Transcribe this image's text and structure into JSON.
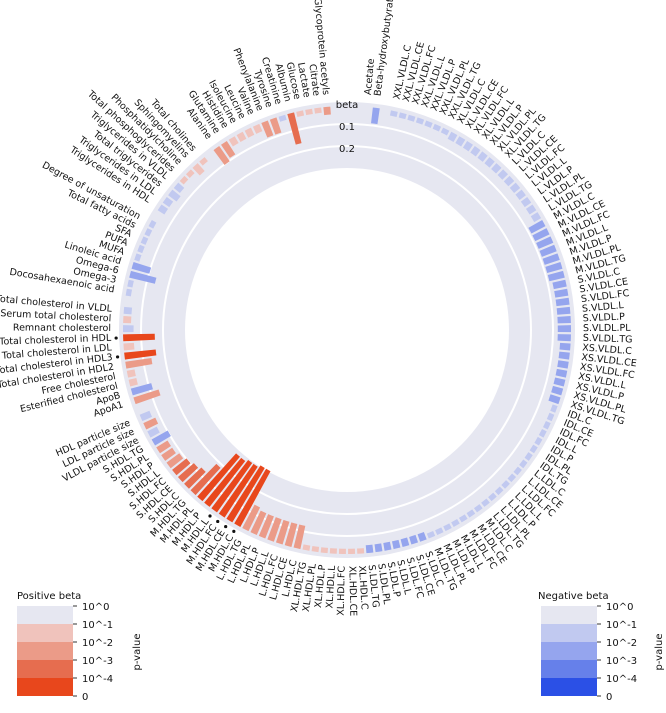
{
  "chart_data": {
    "type": "circular-bar",
    "ring_labels": [
      "beta",
      "0.1",
      "0.2"
    ],
    "colors": {
      "ring_bg": "#e6e7f1",
      "positive": [
        "#e6e7f1",
        "#f0c3bc",
        "#eb9b88",
        "#e66d4f",
        "#e8471c"
      ],
      "negative": [
        "#e6e7f1",
        "#c1c9f0",
        "#95a5ee",
        "#6680ea",
        "#2b50e6"
      ]
    },
    "features": [
      {
        "label": "Acetate",
        "beta": 0,
        "sign": "pos",
        "level": 0
      },
      {
        "label": "Beta-hydroxybutyrate",
        "beta": 0.06,
        "sign": "neg",
        "level": 2
      },
      {
        "label": "",
        "beta": 0,
        "sign": "pos",
        "level": 0
      },
      {
        "label": "XXL.VLDL.C",
        "beta": 0.02,
        "sign": "neg",
        "level": 1
      },
      {
        "label": "XXL.VLDL.CE",
        "beta": 0.02,
        "sign": "neg",
        "level": 1
      },
      {
        "label": "XXL.VLDL.FC",
        "beta": 0.02,
        "sign": "neg",
        "level": 1
      },
      {
        "label": "XXL.VLDL.L",
        "beta": 0.02,
        "sign": "neg",
        "level": 1
      },
      {
        "label": "XXL.VLDL.P",
        "beta": 0.02,
        "sign": "neg",
        "level": 1
      },
      {
        "label": "XXL.VLDL.PL",
        "beta": 0.02,
        "sign": "neg",
        "level": 1
      },
      {
        "label": "XXL.VLDL.TG",
        "beta": 0.02,
        "sign": "neg",
        "level": 1
      },
      {
        "label": "XL.VLDL.C",
        "beta": 0.03,
        "sign": "neg",
        "level": 1
      },
      {
        "label": "XL.VLDL.CE",
        "beta": 0.03,
        "sign": "neg",
        "level": 1
      },
      {
        "label": "XL.VLDL.FC",
        "beta": 0.03,
        "sign": "neg",
        "level": 1
      },
      {
        "label": "XL.VLDL.L",
        "beta": 0.03,
        "sign": "neg",
        "level": 1
      },
      {
        "label": "XL.VLDL.P",
        "beta": 0.03,
        "sign": "neg",
        "level": 1
      },
      {
        "label": "XL.VLDL.PL",
        "beta": 0.03,
        "sign": "neg",
        "level": 1
      },
      {
        "label": "XL.VLDL.TG",
        "beta": 0.03,
        "sign": "neg",
        "level": 1
      },
      {
        "label": "L.VLDL.C",
        "beta": 0.03,
        "sign": "neg",
        "level": 1
      },
      {
        "label": "L.VLDL.CE",
        "beta": 0.03,
        "sign": "neg",
        "level": 1
      },
      {
        "label": "L.VLDL.FC",
        "beta": 0.03,
        "sign": "neg",
        "level": 1
      },
      {
        "label": "L.VLDL.L",
        "beta": 0.03,
        "sign": "neg",
        "level": 1
      },
      {
        "label": "L.VLDL.P",
        "beta": 0.03,
        "sign": "neg",
        "level": 1
      },
      {
        "label": "L.VLDL.PL",
        "beta": 0.03,
        "sign": "neg",
        "level": 1
      },
      {
        "label": "L.VLDL.TG",
        "beta": 0.03,
        "sign": "neg",
        "level": 1
      },
      {
        "label": "M.VLDL.C",
        "beta": 0.06,
        "sign": "neg",
        "level": 2
      },
      {
        "label": "M.VLDL.CE",
        "beta": 0.06,
        "sign": "neg",
        "level": 2
      },
      {
        "label": "M.VLDL.FC",
        "beta": 0.06,
        "sign": "neg",
        "level": 2
      },
      {
        "label": "M.VLDL.L",
        "beta": 0.06,
        "sign": "neg",
        "level": 2
      },
      {
        "label": "M.VLDL.P",
        "beta": 0.06,
        "sign": "neg",
        "level": 2
      },
      {
        "label": "M.VLDL.PL",
        "beta": 0.06,
        "sign": "neg",
        "level": 2
      },
      {
        "label": "M.VLDL.TG",
        "beta": 0.06,
        "sign": "neg",
        "level": 2
      },
      {
        "label": "S.VLDL.C",
        "beta": 0.05,
        "sign": "neg",
        "level": 2
      },
      {
        "label": "S.VLDL.CE",
        "beta": 0.05,
        "sign": "neg",
        "level": 2
      },
      {
        "label": "S.VLDL.FC",
        "beta": 0.05,
        "sign": "neg",
        "level": 2
      },
      {
        "label": "S.VLDL.L",
        "beta": 0.05,
        "sign": "neg",
        "level": 2
      },
      {
        "label": "S.VLDL.P",
        "beta": 0.05,
        "sign": "neg",
        "level": 2
      },
      {
        "label": "S.VLDL.PL",
        "beta": 0.05,
        "sign": "neg",
        "level": 2
      },
      {
        "label": "S.VLDL.TG",
        "beta": 0.05,
        "sign": "neg",
        "level": 2
      },
      {
        "label": "XS.VLDL.C",
        "beta": 0.04,
        "sign": "neg",
        "level": 2
      },
      {
        "label": "XS.VLDL.CE",
        "beta": 0.04,
        "sign": "neg",
        "level": 2
      },
      {
        "label": "XS.VLDL.FC",
        "beta": 0.04,
        "sign": "neg",
        "level": 2
      },
      {
        "label": "XS.VLDL.L",
        "beta": 0.04,
        "sign": "neg",
        "level": 2
      },
      {
        "label": "XS.VLDL.P",
        "beta": 0.04,
        "sign": "neg",
        "level": 2
      },
      {
        "label": "XS.VLDL.PL",
        "beta": 0.04,
        "sign": "neg",
        "level": 2
      },
      {
        "label": "XS.VLDL.TG",
        "beta": 0.04,
        "sign": "neg",
        "level": 2
      },
      {
        "label": "IDL.C",
        "beta": 0.02,
        "sign": "neg",
        "level": 1
      },
      {
        "label": "IDL.CE",
        "beta": 0.02,
        "sign": "neg",
        "level": 1
      },
      {
        "label": "IDL.FC",
        "beta": 0.02,
        "sign": "neg",
        "level": 1
      },
      {
        "label": "IDL.L",
        "beta": 0.02,
        "sign": "neg",
        "level": 1
      },
      {
        "label": "IDL.P",
        "beta": 0.02,
        "sign": "neg",
        "level": 1
      },
      {
        "label": "IDL.PL",
        "beta": 0.02,
        "sign": "neg",
        "level": 1
      },
      {
        "label": "IDL.TG",
        "beta": 0.02,
        "sign": "neg",
        "level": 1
      },
      {
        "label": "L.LDL.C",
        "beta": 0.02,
        "sign": "neg",
        "level": 1
      },
      {
        "label": "L.LDL.CE",
        "beta": 0.02,
        "sign": "neg",
        "level": 1
      },
      {
        "label": "L.LDL.FC",
        "beta": 0.02,
        "sign": "neg",
        "level": 1
      },
      {
        "label": "L.LDL.L",
        "beta": 0.02,
        "sign": "neg",
        "level": 1
      },
      {
        "label": "L.LDL.P",
        "beta": 0.02,
        "sign": "neg",
        "level": 1
      },
      {
        "label": "L.LDL.PL",
        "beta": 0.02,
        "sign": "neg",
        "level": 1
      },
      {
        "label": "L.LDL.TG",
        "beta": 0.02,
        "sign": "neg",
        "level": 1
      },
      {
        "label": "M.LDL.C",
        "beta": 0.02,
        "sign": "neg",
        "level": 1
      },
      {
        "label": "M.LDL.CE",
        "beta": 0.02,
        "sign": "neg",
        "level": 1
      },
      {
        "label": "M.LDL.FC",
        "beta": 0.02,
        "sign": "neg",
        "level": 1
      },
      {
        "label": "M.LDL.L",
        "beta": 0.02,
        "sign": "neg",
        "level": 1
      },
      {
        "label": "M.LDL.P",
        "beta": 0.02,
        "sign": "neg",
        "level": 1
      },
      {
        "label": "M.LDL.PL",
        "beta": 0.02,
        "sign": "neg",
        "level": 1
      },
      {
        "label": "M.LDL.TG",
        "beta": 0.02,
        "sign": "neg",
        "level": 1
      },
      {
        "label": "S.LDL.C",
        "beta": 0.03,
        "sign": "neg",
        "level": 2
      },
      {
        "label": "S.LDL.CE",
        "beta": 0.03,
        "sign": "neg",
        "level": 2
      },
      {
        "label": "S.LDL.FC",
        "beta": 0.03,
        "sign": "neg",
        "level": 2
      },
      {
        "label": "S.LDL.L",
        "beta": 0.03,
        "sign": "neg",
        "level": 2
      },
      {
        "label": "S.LDL.P",
        "beta": 0.03,
        "sign": "neg",
        "level": 2
      },
      {
        "label": "S.LDL.PL",
        "beta": 0.03,
        "sign": "neg",
        "level": 2
      },
      {
        "label": "S.LDL.TG",
        "beta": 0.03,
        "sign": "neg",
        "level": 2
      },
      {
        "label": "XL.HDL.C",
        "beta": 0.02,
        "sign": "pos",
        "level": 1
      },
      {
        "label": "XL.HDL.CE",
        "beta": 0.02,
        "sign": "pos",
        "level": 1
      },
      {
        "label": "XL.HDL.FC",
        "beta": 0.02,
        "sign": "pos",
        "level": 1
      },
      {
        "label": "XL.HDL.L",
        "beta": 0.02,
        "sign": "pos",
        "level": 1
      },
      {
        "label": "XL.HDL.P",
        "beta": 0.02,
        "sign": "pos",
        "level": 1
      },
      {
        "label": "XL.HDL.PL",
        "beta": 0.02,
        "sign": "pos",
        "level": 1
      },
      {
        "label": "XL.HDL.TG",
        "beta": 0.02,
        "sign": "pos",
        "level": 1
      },
      {
        "label": "L.HDL.C",
        "beta": 0.09,
        "sign": "pos",
        "level": 2
      },
      {
        "label": "L.HDL.CE",
        "beta": 0.09,
        "sign": "pos",
        "level": 2
      },
      {
        "label": "L.HDL.FC",
        "beta": 0.09,
        "sign": "pos",
        "level": 2
      },
      {
        "label": "L.HDL.L",
        "beta": 0.09,
        "sign": "pos",
        "level": 2
      },
      {
        "label": "L.HDL.P",
        "beta": 0.09,
        "sign": "pos",
        "level": 2
      },
      {
        "label": "L.HDL.PL",
        "beta": 0.09,
        "sign": "pos",
        "level": 2
      },
      {
        "label": "L.HDL.TG",
        "beta": 0.1,
        "sign": "pos",
        "level": 2
      },
      {
        "label": "M.HDL.C",
        "beta": 0.24,
        "sign": "pos",
        "level": 4,
        "sig": true
      },
      {
        "label": "M.HDL.CE",
        "beta": 0.24,
        "sign": "pos",
        "level": 4,
        "sig": true
      },
      {
        "label": "M.HDL.FC",
        "beta": 0.23,
        "sign": "pos",
        "level": 4,
        "sig": true
      },
      {
        "label": "M.HDL.L",
        "beta": 0.23,
        "sign": "pos",
        "level": 4,
        "sig": true
      },
      {
        "label": "M.HDL.P",
        "beta": 0.22,
        "sign": "pos",
        "level": 4
      },
      {
        "label": "M.HDL.PL",
        "beta": 0.22,
        "sign": "pos",
        "level": 4
      },
      {
        "label": "M.HDL.TG",
        "beta": 0.14,
        "sign": "pos",
        "level": 3
      },
      {
        "label": "S.HDL.C",
        "beta": 0.09,
        "sign": "pos",
        "level": 3
      },
      {
        "label": "S.HDL.CE",
        "beta": 0.08,
        "sign": "pos",
        "level": 3
      },
      {
        "label": "S.HDL.FC",
        "beta": 0.07,
        "sign": "pos",
        "level": 3
      },
      {
        "label": "S.HDL.L",
        "beta": 0.06,
        "sign": "pos",
        "level": 2
      },
      {
        "label": "S.HDL.P",
        "beta": 0.05,
        "sign": "pos",
        "level": 2
      },
      {
        "label": "S.HDL.PL",
        "beta": 0.05,
        "sign": "pos",
        "level": 2
      },
      {
        "label": "S.HDL.TG",
        "beta": 0.07,
        "sign": "neg",
        "level": 2
      },
      {
        "label": "VLDL particle size",
        "beta": 0.04,
        "sign": "neg",
        "level": 1
      },
      {
        "label": "LDL particle size",
        "beta": 0.05,
        "sign": "pos",
        "level": 2
      },
      {
        "label": "HDL particle size",
        "beta": 0.04,
        "sign": "neg",
        "level": 1
      },
      {
        "label": "",
        "beta": 0,
        "sign": "pos",
        "level": 0
      },
      {
        "label": "ApoA1",
        "beta": 0.1,
        "sign": "pos",
        "level": 2
      },
      {
        "label": "ApoB",
        "beta": 0.08,
        "sign": "neg",
        "level": 2
      },
      {
        "label": "Esterified cholesterol",
        "beta": 0.03,
        "sign": "pos",
        "level": 1
      },
      {
        "label": "Free cholesterol",
        "beta": 0.03,
        "sign": "pos",
        "level": 1
      },
      {
        "label": "Total cholesterol in HDL2",
        "beta": 0.1,
        "sign": "pos",
        "level": 2
      },
      {
        "label": "Total cholesterol in HDL3",
        "beta": 0.12,
        "sign": "pos",
        "level": 4,
        "sig": true
      },
      {
        "label": "Total cholesterol in LDL",
        "beta": 0.04,
        "sign": "pos",
        "level": 1
      },
      {
        "label": "Total cholesterol in HDL",
        "beta": 0.12,
        "sign": "pos",
        "level": 4,
        "sig": true
      },
      {
        "label": "Remnant cholesterol",
        "beta": 0.04,
        "sign": "neg",
        "level": 1
      },
      {
        "label": "Serum total cholesterol",
        "beta": 0.03,
        "sign": "pos",
        "level": 1
      },
      {
        "label": "Total cholesterol in VLDL",
        "beta": 0.03,
        "sign": "neg",
        "level": 1
      },
      {
        "label": "",
        "beta": 0,
        "sign": "pos",
        "level": 0
      },
      {
        "label": "Docosahexaenoic acid",
        "beta": 0.02,
        "sign": "neg",
        "level": 1
      },
      {
        "label": "Omega-3",
        "beta": 0.02,
        "sign": "neg",
        "level": 1
      },
      {
        "label": "Omega-6",
        "beta": 0.1,
        "sign": "neg",
        "level": 2
      },
      {
        "label": "Linoleic acid",
        "beta": 0.07,
        "sign": "neg",
        "level": 2
      },
      {
        "label": "MUFA",
        "beta": 0.02,
        "sign": "neg",
        "level": 1
      },
      {
        "label": "PUFA",
        "beta": 0.02,
        "sign": "neg",
        "level": 1
      },
      {
        "label": "SFA",
        "beta": 0.02,
        "sign": "neg",
        "level": 1
      },
      {
        "label": "Total fatty acids",
        "beta": 0.02,
        "sign": "neg",
        "level": 1
      },
      {
        "label": "Degree of unsaturation",
        "beta": 0.02,
        "sign": "neg",
        "level": 1
      },
      {
        "label": "",
        "beta": 0,
        "sign": "pos",
        "level": 0
      },
      {
        "label": "Triglycerides in HDL",
        "beta": 0.03,
        "sign": "neg",
        "level": 1
      },
      {
        "label": "Triglycerides in LDL",
        "beta": 0.03,
        "sign": "neg",
        "level": 1
      },
      {
        "label": "Total triglycerides",
        "beta": 0.04,
        "sign": "neg",
        "level": 1
      },
      {
        "label": "Triglycerides in VLDL",
        "beta": 0.03,
        "sign": "neg",
        "level": 1
      },
      {
        "label": "Total phosphoglycerides",
        "beta": 0.02,
        "sign": "pos",
        "level": 1
      },
      {
        "label": "Phosphatidylcholine",
        "beta": 0.02,
        "sign": "pos",
        "level": 1
      },
      {
        "label": "Sphingomyelins",
        "beta": 0.04,
        "sign": "pos",
        "level": 1
      },
      {
        "label": "Total cholines",
        "beta": 0.02,
        "sign": "pos",
        "level": 1
      },
      {
        "label": "",
        "beta": 0,
        "sign": "pos",
        "level": 0
      },
      {
        "label": "Alanine",
        "beta": 0.07,
        "sign": "pos",
        "level": 2
      },
      {
        "label": "Glutamine",
        "beta": 0.06,
        "sign": "pos",
        "level": 2
      },
      {
        "label": "Histidine",
        "beta": 0.03,
        "sign": "pos",
        "level": 1
      },
      {
        "label": "Isoleucine",
        "beta": 0.03,
        "sign": "pos",
        "level": 1
      },
      {
        "label": "Leucine",
        "beta": 0.03,
        "sign": "pos",
        "level": 1
      },
      {
        "label": "Valine",
        "beta": 0.03,
        "sign": "pos",
        "level": 1
      },
      {
        "label": "Phenylalanine",
        "beta": 0.06,
        "sign": "pos",
        "level": 2
      },
      {
        "label": "Tyrosine",
        "beta": 0.06,
        "sign": "pos",
        "level": 2
      },
      {
        "label": "Creatinine",
        "beta": 0.02,
        "sign": "neg",
        "level": 1
      },
      {
        "label": "Albumin",
        "beta": 0.12,
        "sign": "pos",
        "level": 3
      },
      {
        "label": "Glucose",
        "beta": 0.02,
        "sign": "pos",
        "level": 1
      },
      {
        "label": "Lactate",
        "beta": 0.02,
        "sign": "pos",
        "level": 1
      },
      {
        "label": "Citrate",
        "beta": 0.02,
        "sign": "pos",
        "level": 1
      },
      {
        "label": "Glycoprotein acetyls",
        "beta": 0.03,
        "sign": "pos",
        "level": 2
      }
    ],
    "legend_positive": {
      "title": "Positive beta",
      "ticks": [
        "10^0",
        "10^-1",
        "10^-2",
        "10^-3",
        "10^-4",
        "0"
      ],
      "axis_label": "p-value"
    },
    "legend_negative": {
      "title": "Negative beta",
      "ticks": [
        "10^0",
        "10^-1",
        "10^-2",
        "10^-3",
        "10^-4",
        "0"
      ],
      "axis_label": "p-value"
    }
  }
}
